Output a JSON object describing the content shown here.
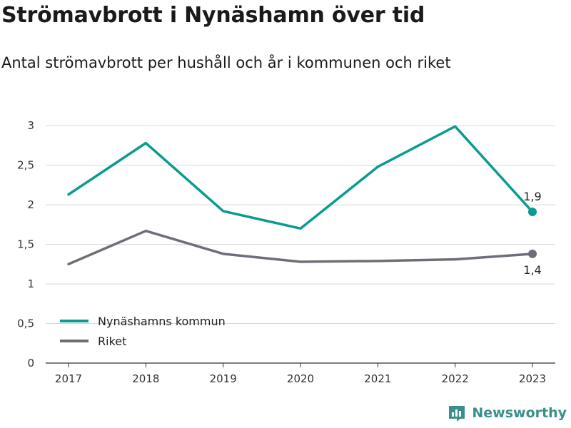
{
  "title": "Strömavbrott i Nynäshamn över tid",
  "subtitle": "Antal strömavbrott per hushåll och år i kommunen och riket",
  "brand": "Newsworthy",
  "colors": {
    "series1": "#0a9c8f",
    "series2": "#6e6e78",
    "grid": "#d9d9d9",
    "axis": "#333333",
    "brand": "#3a8f8a"
  },
  "chart_data": {
    "type": "line",
    "categories": [
      "2017",
      "2018",
      "2019",
      "2020",
      "2021",
      "2022",
      "2023"
    ],
    "series": [
      {
        "name": "Nynäshamns kommun",
        "values": [
          2.13,
          2.78,
          1.92,
          1.7,
          2.48,
          2.99,
          1.91
        ],
        "end_label": "1,9"
      },
      {
        "name": "Riket",
        "values": [
          1.25,
          1.67,
          1.38,
          1.28,
          1.29,
          1.31,
          1.38
        ],
        "end_label": "1,4"
      }
    ],
    "y_ticks": [
      0,
      0.5,
      1,
      1.5,
      2,
      2.5,
      3
    ],
    "y_tick_labels": [
      "0",
      "0,5",
      "1",
      "1,5",
      "2",
      "2,5",
      "3"
    ],
    "ylim": [
      0,
      3.1
    ],
    "grid": true,
    "legend_position": "bottom-left"
  }
}
